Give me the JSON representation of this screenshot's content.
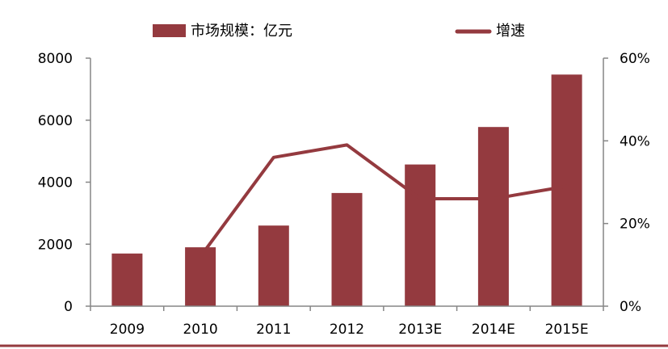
{
  "chart_data": {
    "type": "bar",
    "categories": [
      "2009",
      "2010",
      "2011",
      "2012",
      "2013E",
      "2014E",
      "2015E"
    ],
    "series": [
      {
        "name": "市场规模：亿元",
        "type": "bar",
        "axis": "left",
        "color": "#943a3f",
        "values": [
          1700,
          1900,
          2600,
          3650,
          4570,
          5780,
          7470
        ]
      },
      {
        "name": "增速",
        "type": "line",
        "axis": "right",
        "color": "#943a3f",
        "values": [
          null,
          0.12,
          0.36,
          0.39,
          0.26,
          0.26,
          0.29
        ]
      }
    ],
    "y_left": {
      "min": 0,
      "max": 8000,
      "ticks": [
        0,
        2000,
        4000,
        6000,
        8000
      ],
      "tick_labels": [
        "0",
        "2000",
        "4000",
        "6000",
        "8000"
      ]
    },
    "y_right": {
      "min": 0,
      "max": 0.6,
      "ticks": [
        0,
        0.2,
        0.4,
        0.6
      ],
      "tick_labels": [
        "0%",
        "20%",
        "40%",
        "60%"
      ]
    },
    "legend": {
      "position": "top",
      "items": [
        {
          "label": "市场规模：亿元",
          "symbol": "bar"
        },
        {
          "label": "增速",
          "symbol": "line"
        }
      ]
    },
    "grid": false,
    "axis_color": "#868686",
    "bottom_rule_color": "#943a3f"
  }
}
